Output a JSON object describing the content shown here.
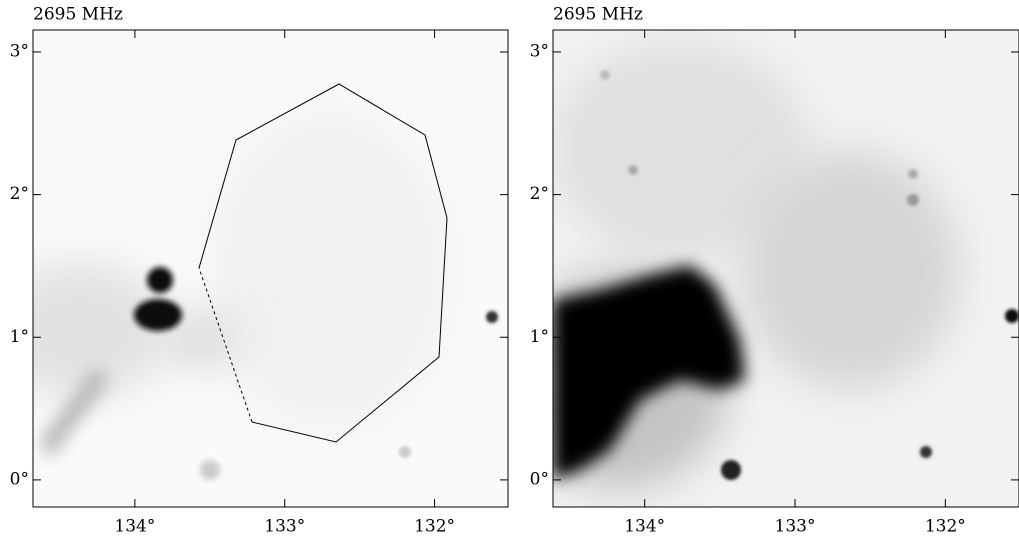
{
  "chart_data": [
    {
      "type": "image",
      "title": "2695 MHz",
      "xlim": [
        134.68,
        131.51
      ],
      "ylim": [
        -0.19,
        3.154
      ],
      "xticks": [
        {
          "value": 134,
          "label": "134°"
        },
        {
          "value": 133,
          "label": "133°"
        },
        {
          "value": 132,
          "label": "132°"
        }
      ],
      "yticks": [
        {
          "value": 0,
          "label": "0°"
        },
        {
          "value": 1,
          "label": "1°"
        },
        {
          "value": 2,
          "label": "2°"
        },
        {
          "value": 3,
          "label": "3°"
        }
      ]
    },
    {
      "type": "image",
      "title": "2695 MHz",
      "xlim": [
        134.61,
        131.51
      ],
      "ylim": [
        -0.19,
        3.154
      ],
      "xticks": [
        {
          "value": 134,
          "label": "134°"
        },
        {
          "value": 133,
          "label": "133°"
        },
        {
          "value": 132,
          "label": "132°"
        }
      ],
      "yticks": [
        {
          "value": 0,
          "label": "0°"
        },
        {
          "value": 1,
          "label": "1°"
        },
        {
          "value": 2,
          "label": "2°"
        },
        {
          "value": 3,
          "label": "3°"
        }
      ]
    }
  ]
}
